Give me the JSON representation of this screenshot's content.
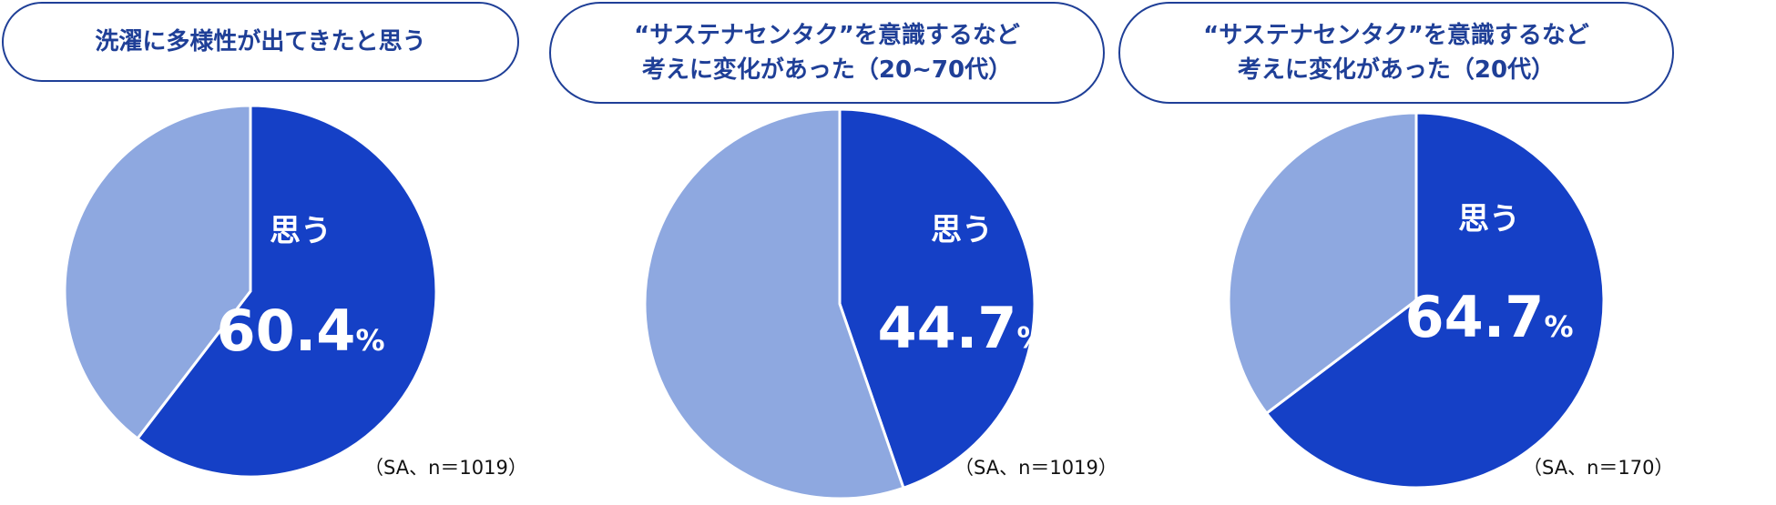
{
  "colors": {
    "primary": "#1540c6",
    "secondary": "#8ea8e0",
    "title_border": "#1f3f97",
    "title_text": "#1f3f97"
  },
  "chart_data": [
    {
      "type": "pie",
      "title_lines": [
        "洗濯に多様性が出てきたと思う"
      ],
      "slices": [
        {
          "label": "思う",
          "value": 60.4,
          "value_text": "60.4",
          "unit": "%",
          "color": "#1540c6"
        },
        {
          "label": "",
          "value": 39.6,
          "color": "#8ea8e0"
        }
      ],
      "note": "（SA、n＝1019）"
    },
    {
      "type": "pie",
      "title_lines": [
        "“サステナセンタク”を意識するなど",
        "考えに変化があった（20~70代）"
      ],
      "slices": [
        {
          "label": "思う",
          "value": 44.7,
          "value_text": "44.7",
          "unit": "%",
          "color": "#1540c6"
        },
        {
          "label": "",
          "value": 55.3,
          "color": "#8ea8e0"
        }
      ],
      "note": "（SA、n＝1019）"
    },
    {
      "type": "pie",
      "title_lines": [
        "“サステナセンタク”を意識するなど",
        "考えに変化があった（20代）"
      ],
      "slices": [
        {
          "label": "思う",
          "value": 64.7,
          "value_text": "64.7",
          "unit": "%",
          "color": "#1540c6"
        },
        {
          "label": "",
          "value": 35.3,
          "color": "#8ea8e0"
        }
      ],
      "note": "（SA、n＝170）"
    }
  ]
}
